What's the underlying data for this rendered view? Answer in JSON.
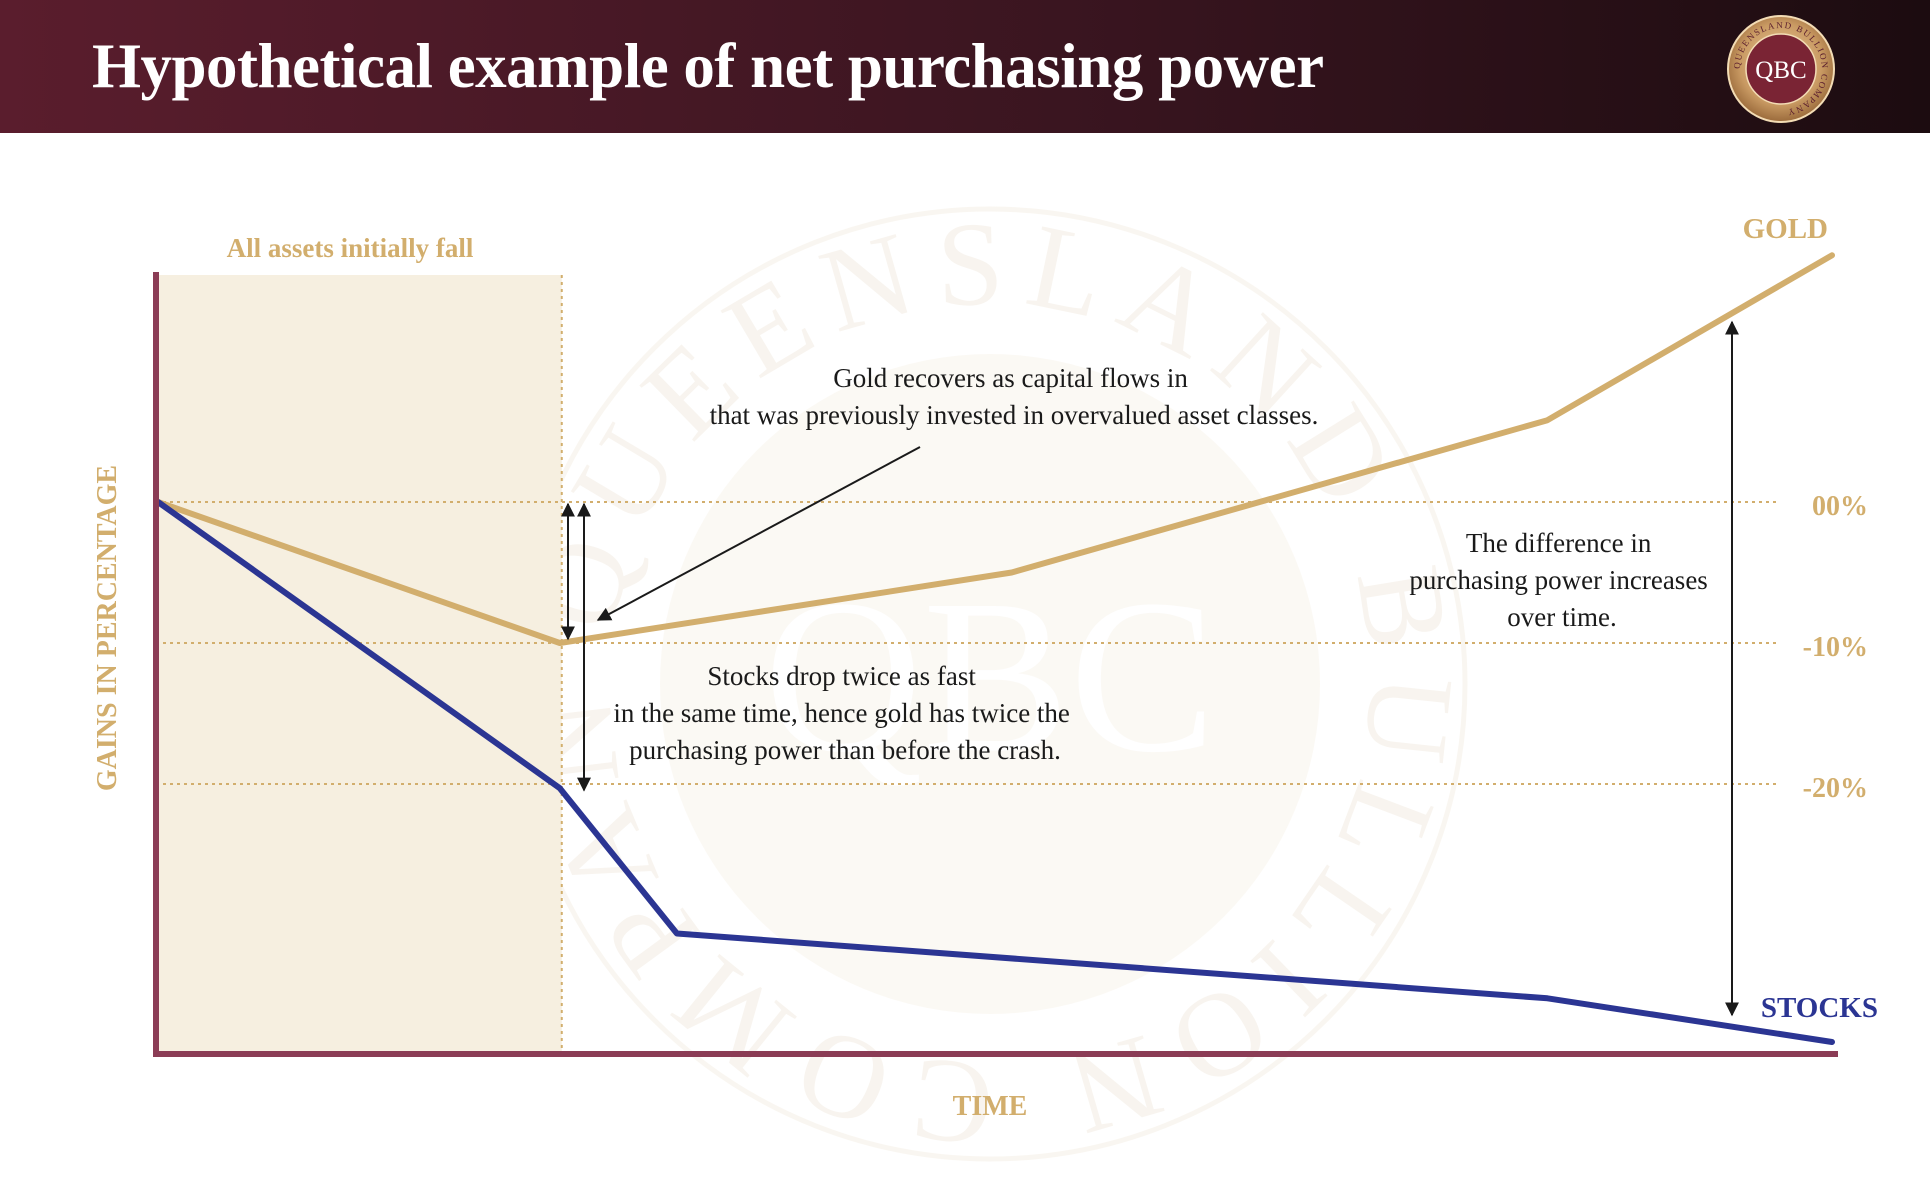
{
  "header": {
    "title": "Hypothetical example of net purchasing power",
    "logo": {
      "text": "QBC",
      "ring_text": "QUEENSLAND BULLION COMPANY",
      "icon": "qbc-logo"
    }
  },
  "watermark": {
    "text": "QUEENSLAND BULLION COMPANY",
    "monogram": "QBC"
  },
  "colors": {
    "header_bg": "#4a1826",
    "gold": "#d2ae6d",
    "stocks": "#2b3593",
    "axis": "#8b3c55",
    "shade": "#f6efe0",
    "annotation_text": "#1a1a1a"
  },
  "chart_data": {
    "type": "line",
    "title": "Hypothetical example of net purchasing power",
    "xlabel": "TIME",
    "ylabel": "GAINS IN PERCENTAGE",
    "y_ticks": [
      {
        "value": 0,
        "label": "00%"
      },
      {
        "value": -10,
        "label": "-10%"
      },
      {
        "value": -20,
        "label": "-20%"
      }
    ],
    "ylim": [
      -39,
      16
    ],
    "xlim": [
      0,
      10
    ],
    "grid": "dotted horizontal lines at tick values",
    "shaded_region": {
      "x_start": 0,
      "x_end": 2.4,
      "label": "All assets initially fall"
    },
    "series": [
      {
        "name": "GOLD",
        "points": [
          [
            0,
            0
          ],
          [
            2.4,
            -10
          ],
          [
            5.1,
            -5
          ],
          [
            8.3,
            5.8
          ],
          [
            10,
            17.5
          ]
        ]
      },
      {
        "name": "STOCKS",
        "points": [
          [
            0,
            0
          ],
          [
            2.4,
            -20.3
          ],
          [
            3.1,
            -30.6
          ],
          [
            8.3,
            -35.2
          ],
          [
            10,
            -38.3
          ]
        ]
      }
    ],
    "annotations": [
      {
        "id": "gold_recovers",
        "lines": [
          "Gold recovers as capital flows in",
          "that was previously invested in overvalued asset classes."
        ]
      },
      {
        "id": "stocks_drop",
        "lines": [
          "Stocks drop twice as fast",
          "in the same time, hence gold has twice the",
          "purchasing power than before the crash."
        ]
      },
      {
        "id": "difference",
        "lines": [
          "The difference in",
          "purchasing power increases",
          "over time."
        ]
      }
    ]
  }
}
